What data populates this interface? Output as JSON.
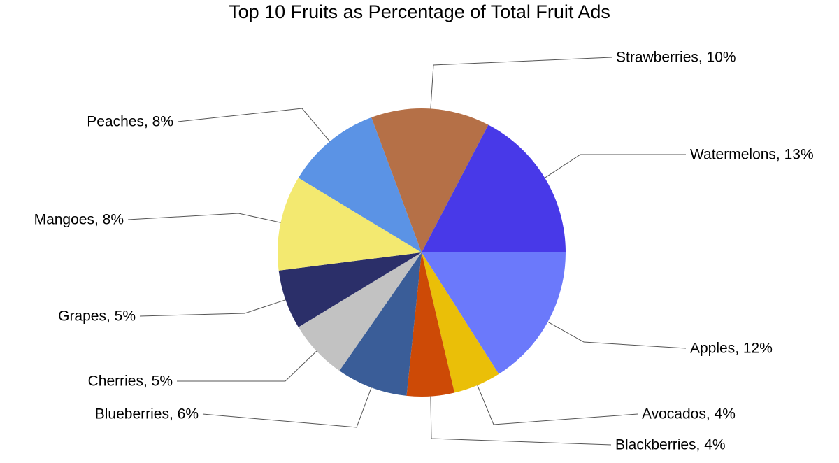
{
  "chart_data": {
    "type": "pie",
    "title": "Top 10 Fruits as Percentage of Total Fruit Ads",
    "slices": [
      {
        "name": "Apples",
        "value": 12,
        "label": "Apples, 12%",
        "color": "#6b79fb"
      },
      {
        "name": "Avocados",
        "value": 4,
        "label": "Avocados, 4%",
        "color": "#eabf08"
      },
      {
        "name": "Blackberries",
        "value": 4,
        "label": "Blackberries, 4%",
        "color": "#cd4a06"
      },
      {
        "name": "Blueberries",
        "value": 6,
        "label": "Blueberries, 6%",
        "color": "#3a5d98"
      },
      {
        "name": "Cherries",
        "value": 5,
        "label": "Cherries, 5%",
        "color": "#c2c2c2"
      },
      {
        "name": "Grapes",
        "value": 5,
        "label": "Grapes, 5%",
        "color": "#2b2f69"
      },
      {
        "name": "Mangoes",
        "value": 8,
        "label": "Mangoes, 8%",
        "color": "#f3e970"
      },
      {
        "name": "Peaches",
        "value": 8,
        "label": "Peaches, 8%",
        "color": "#5b93e5"
      },
      {
        "name": "Strawberries",
        "value": 10,
        "label": "Strawberries, 10%",
        "color": "#b57047"
      },
      {
        "name": "Watermelons",
        "value": 13,
        "label": "Watermelons, 13%",
        "color": "#4839e8"
      }
    ]
  }
}
